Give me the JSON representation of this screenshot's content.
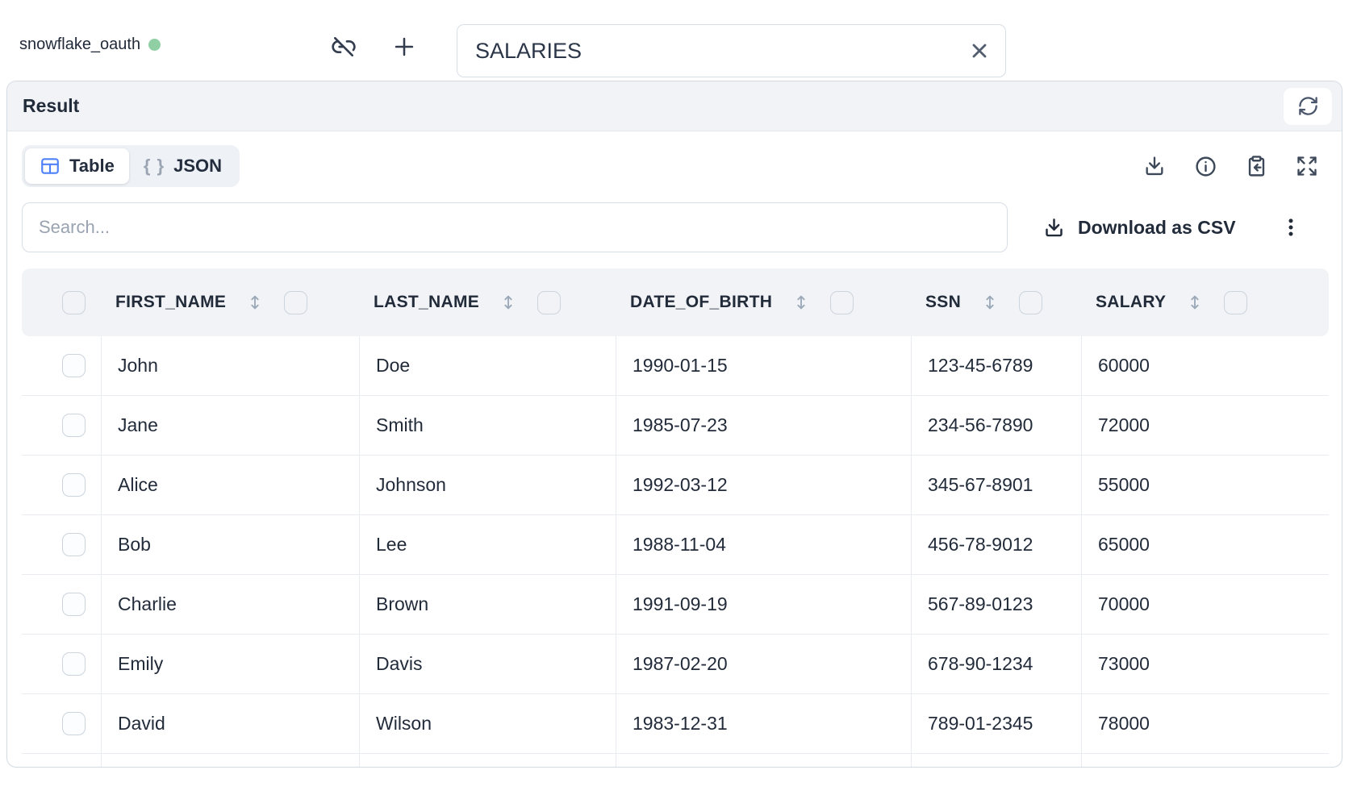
{
  "topbar": {
    "connection": {
      "name": "snowflake_oauth",
      "status": "connected",
      "status_color": "#90cfa4"
    },
    "table_selector": {
      "value": "SALARIES"
    }
  },
  "panel": {
    "title": "Result",
    "view_tabs": {
      "table_label": "Table",
      "json_label": "JSON",
      "json_icon_text": "{ }"
    },
    "search": {
      "placeholder": "Search..."
    },
    "download_csv_label": "Download as CSV"
  },
  "table": {
    "column_keys": [
      "first_name",
      "last_name",
      "date_of_birth",
      "ssn",
      "salary"
    ],
    "columns": [
      "FIRST_NAME",
      "LAST_NAME",
      "DATE_OF_BIRTH",
      "SSN",
      "SALARY"
    ],
    "rows": [
      {
        "first_name": "John",
        "last_name": "Doe",
        "date_of_birth": "1990-01-15",
        "ssn": "123-45-6789",
        "salary": "60000"
      },
      {
        "first_name": "Jane",
        "last_name": "Smith",
        "date_of_birth": "1985-07-23",
        "ssn": "234-56-7890",
        "salary": "72000"
      },
      {
        "first_name": "Alice",
        "last_name": "Johnson",
        "date_of_birth": "1992-03-12",
        "ssn": "345-67-8901",
        "salary": "55000"
      },
      {
        "first_name": "Bob",
        "last_name": "Lee",
        "date_of_birth": "1988-11-04",
        "ssn": "456-78-9012",
        "salary": "65000"
      },
      {
        "first_name": "Charlie",
        "last_name": "Brown",
        "date_of_birth": "1991-09-19",
        "ssn": "567-89-0123",
        "salary": "70000"
      },
      {
        "first_name": "Emily",
        "last_name": "Davis",
        "date_of_birth": "1987-02-20",
        "ssn": "678-90-1234",
        "salary": "73000"
      },
      {
        "first_name": "David",
        "last_name": "Wilson",
        "date_of_birth": "1983-12-31",
        "ssn": "789-01-2345",
        "salary": "78000"
      }
    ]
  },
  "colors": {
    "accent_blue": "#4e80f7",
    "status_green": "#90cfa4",
    "text_dark": "#222b3a",
    "icon_gray": "#3d4859",
    "muted_gray": "#9aa4b2",
    "header_bg": "#f1f3f6"
  }
}
